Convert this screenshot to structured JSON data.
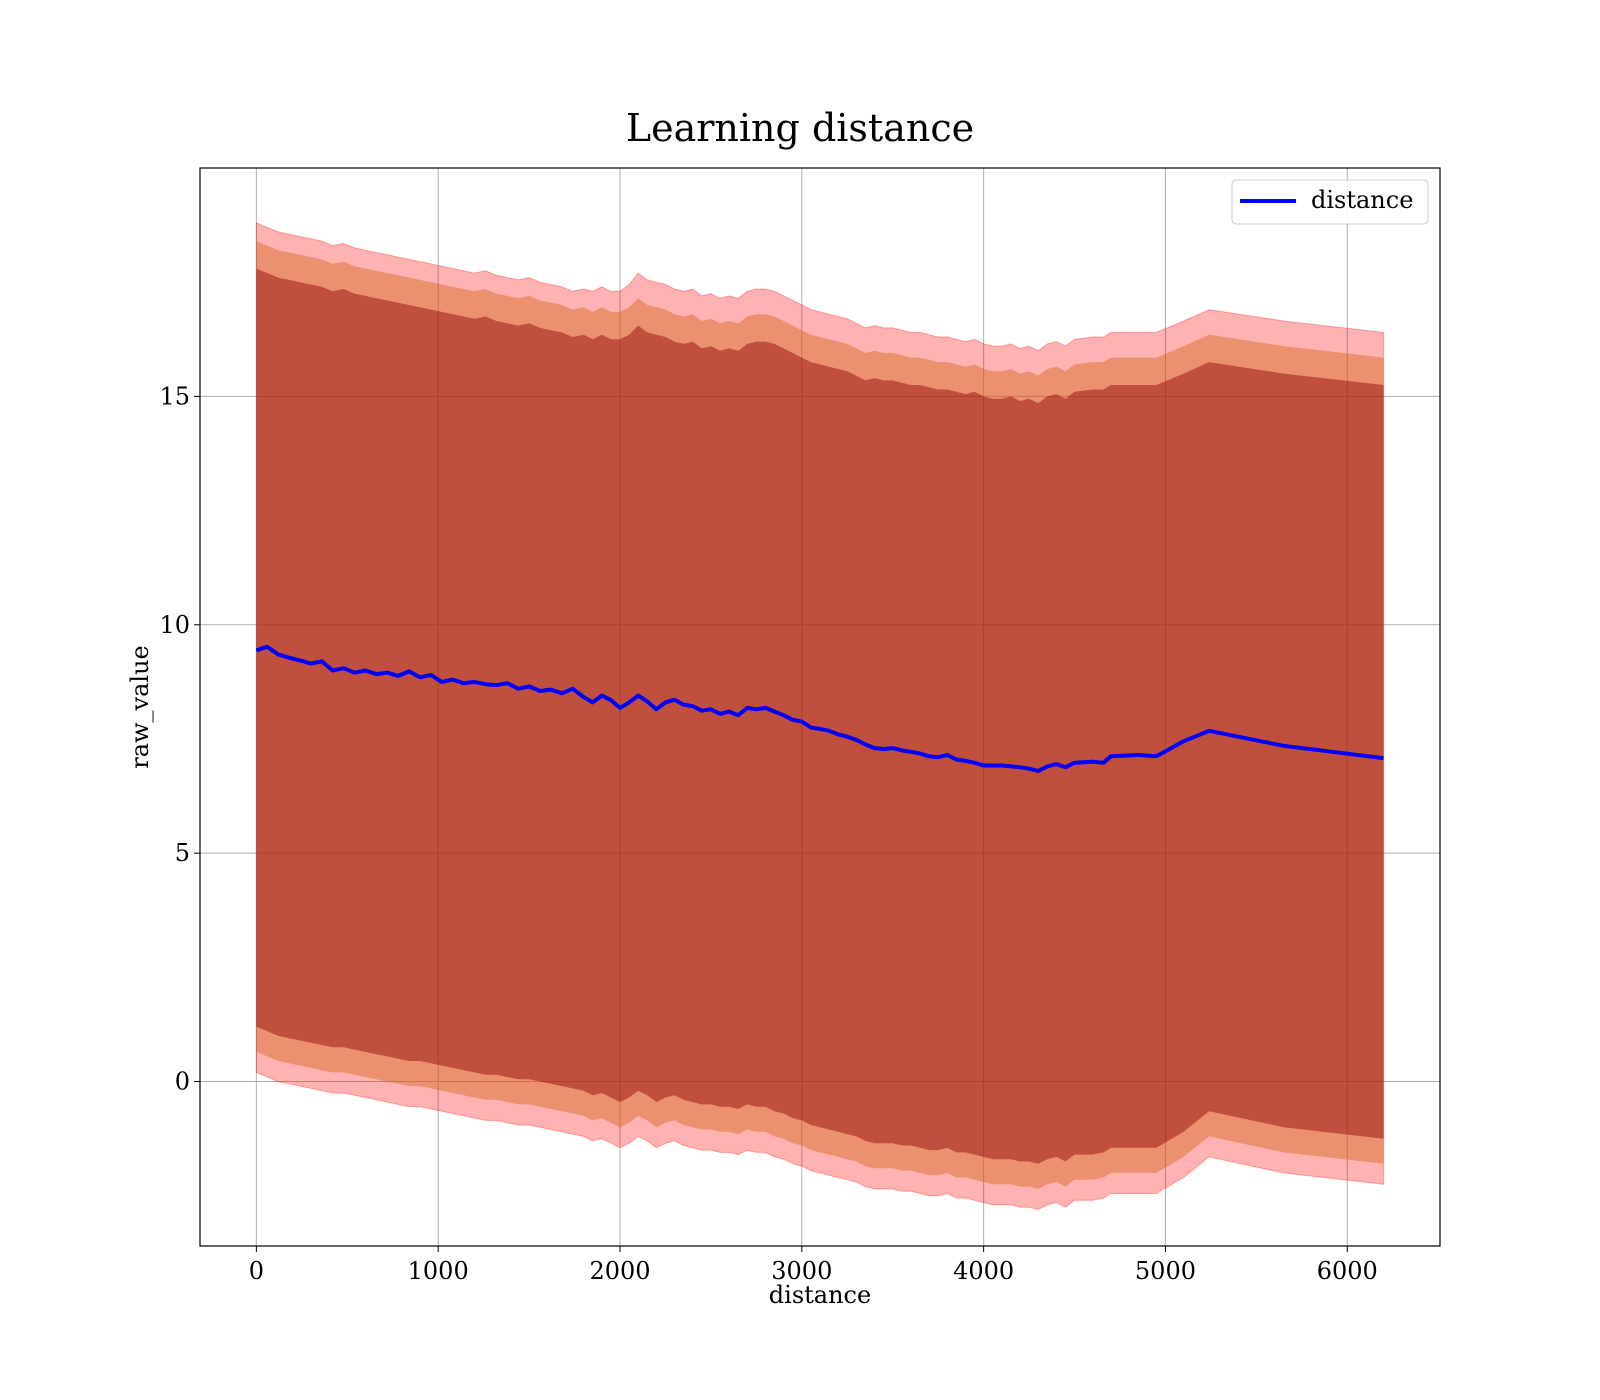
{
  "chart_data": {
    "type": "line",
    "title": "Learning distance",
    "xlabel": "distance",
    "ylabel": "raw_value",
    "xlim": [
      -310,
      6510
    ],
    "ylim": [
      -3.6,
      20.0
    ],
    "xticks": [
      0,
      1000,
      2000,
      3000,
      4000,
      5000,
      6000
    ],
    "yticks": [
      0,
      5,
      10,
      15
    ],
    "grid": true,
    "legend": {
      "placement": "top-right",
      "entries": [
        "distance"
      ]
    },
    "colors": {
      "line": "#0000ff",
      "band_outer": "#ff0000",
      "band_middle": "#d2691e",
      "band_inner": "#8b0000"
    },
    "series": [
      {
        "name": "distance",
        "x": [
          0,
          60,
          120,
          180,
          240,
          300,
          360,
          420,
          480,
          540,
          600,
          660,
          720,
          780,
          840,
          900,
          960,
          1020,
          1080,
          1140,
          1200,
          1260,
          1320,
          1380,
          1440,
          1500,
          1560,
          1620,
          1680,
          1740,
          1800,
          1850,
          1900,
          1950,
          2000,
          2050,
          2100,
          2150,
          2200,
          2250,
          2300,
          2350,
          2400,
          2450,
          2500,
          2550,
          2600,
          2650,
          2700,
          2750,
          2800,
          2850,
          2900,
          2950,
          3000,
          3050,
          3100,
          3150,
          3200,
          3250,
          3300,
          3350,
          3400,
          3450,
          3500,
          3550,
          3600,
          3650,
          3700,
          3750,
          3800,
          3850,
          3900,
          3950,
          4000,
          4050,
          4100,
          4150,
          4200,
          4250,
          4300,
          4350,
          4400,
          4450,
          4500,
          4600,
          4660,
          4700,
          4850,
          4950,
          5100,
          5240,
          5650,
          6200
        ],
        "values": [
          9.44,
          9.52,
          9.35,
          9.28,
          9.22,
          9.15,
          9.2,
          9.0,
          9.05,
          8.95,
          9.0,
          8.92,
          8.95,
          8.88,
          8.98,
          8.85,
          8.9,
          8.75,
          8.8,
          8.72,
          8.75,
          8.7,
          8.68,
          8.72,
          8.6,
          8.65,
          8.55,
          8.58,
          8.5,
          8.6,
          8.42,
          8.3,
          8.45,
          8.35,
          8.18,
          8.3,
          8.45,
          8.32,
          8.15,
          8.3,
          8.36,
          8.25,
          8.22,
          8.12,
          8.15,
          8.05,
          8.1,
          8.02,
          8.18,
          8.15,
          8.18,
          8.1,
          8.02,
          7.92,
          7.88,
          7.75,
          7.72,
          7.68,
          7.6,
          7.55,
          7.48,
          7.38,
          7.3,
          7.28,
          7.3,
          7.25,
          7.22,
          7.18,
          7.12,
          7.1,
          7.15,
          7.05,
          7.02,
          6.98,
          6.92,
          6.92,
          6.92,
          6.9,
          6.88,
          6.85,
          6.8,
          6.9,
          6.95,
          6.88,
          6.98,
          7.0,
          6.98,
          7.12,
          7.15,
          7.12,
          7.45,
          7.68,
          7.35,
          7.08
        ],
        "outer_band": {
          "upper": [
            18.8,
            18.7,
            18.6,
            18.55,
            18.5,
            18.45,
            18.4,
            18.3,
            18.35,
            18.25,
            18.2,
            18.15,
            18.1,
            18.05,
            18.0,
            17.95,
            17.9,
            17.85,
            17.8,
            17.75,
            17.7,
            17.75,
            17.65,
            17.6,
            17.55,
            17.6,
            17.5,
            17.45,
            17.4,
            17.3,
            17.35,
            17.3,
            17.4,
            17.3,
            17.3,
            17.45,
            17.7,
            17.55,
            17.5,
            17.45,
            17.35,
            17.3,
            17.35,
            17.2,
            17.25,
            17.15,
            17.2,
            17.15,
            17.3,
            17.35,
            17.35,
            17.3,
            17.2,
            17.1,
            17.0,
            16.9,
            16.85,
            16.8,
            16.75,
            16.7,
            16.6,
            16.5,
            16.55,
            16.5,
            16.5,
            16.45,
            16.4,
            16.4,
            16.35,
            16.3,
            16.3,
            16.25,
            16.2,
            16.25,
            16.15,
            16.1,
            16.1,
            16.15,
            16.05,
            16.1,
            16.0,
            16.15,
            16.2,
            16.1,
            16.25,
            16.3,
            16.3,
            16.4,
            16.4,
            16.4,
            16.65,
            16.9,
            16.65,
            16.4
          ],
          "lower": [
            0.2,
            0.1,
            0.0,
            -0.05,
            -0.1,
            -0.15,
            -0.2,
            -0.25,
            -0.25,
            -0.3,
            -0.35,
            -0.4,
            -0.45,
            -0.5,
            -0.55,
            -0.55,
            -0.6,
            -0.65,
            -0.7,
            -0.75,
            -0.8,
            -0.85,
            -0.85,
            -0.9,
            -0.95,
            -0.95,
            -1.0,
            -1.05,
            -1.1,
            -1.15,
            -1.2,
            -1.3,
            -1.25,
            -1.35,
            -1.45,
            -1.35,
            -1.2,
            -1.3,
            -1.45,
            -1.35,
            -1.3,
            -1.4,
            -1.45,
            -1.5,
            -1.5,
            -1.55,
            -1.55,
            -1.6,
            -1.5,
            -1.55,
            -1.55,
            -1.65,
            -1.7,
            -1.8,
            -1.85,
            -1.95,
            -2.0,
            -2.05,
            -2.1,
            -2.15,
            -2.2,
            -2.3,
            -2.35,
            -2.35,
            -2.35,
            -2.4,
            -2.4,
            -2.45,
            -2.5,
            -2.5,
            -2.45,
            -2.55,
            -2.55,
            -2.6,
            -2.65,
            -2.7,
            -2.7,
            -2.7,
            -2.75,
            -2.75,
            -2.8,
            -2.7,
            -2.65,
            -2.75,
            -2.6,
            -2.6,
            -2.55,
            -2.45,
            -2.45,
            -2.45,
            -2.1,
            -1.65,
            -2.0,
            -2.25
          ]
        },
        "middle_band": {
          "upper": [
            18.4,
            18.3,
            18.2,
            18.15,
            18.1,
            18.05,
            18.0,
            17.9,
            17.95,
            17.85,
            17.8,
            17.75,
            17.7,
            17.65,
            17.6,
            17.55,
            17.5,
            17.45,
            17.4,
            17.35,
            17.3,
            17.35,
            17.25,
            17.2,
            17.15,
            17.2,
            17.1,
            17.05,
            17.0,
            16.9,
            16.95,
            16.85,
            16.95,
            16.85,
            16.85,
            16.95,
            17.15,
            17.0,
            16.95,
            16.9,
            16.8,
            16.75,
            16.8,
            16.65,
            16.7,
            16.6,
            16.65,
            16.6,
            16.75,
            16.8,
            16.8,
            16.75,
            16.65,
            16.55,
            16.45,
            16.35,
            16.3,
            16.25,
            16.2,
            16.15,
            16.05,
            15.95,
            16.0,
            15.95,
            15.95,
            15.9,
            15.85,
            15.85,
            15.8,
            15.75,
            15.75,
            15.7,
            15.65,
            15.7,
            15.6,
            15.55,
            15.55,
            15.6,
            15.5,
            15.55,
            15.45,
            15.6,
            15.65,
            15.55,
            15.7,
            15.75,
            15.75,
            15.85,
            15.85,
            15.85,
            16.1,
            16.35,
            16.1,
            15.85
          ],
          "lower": [
            0.65,
            0.55,
            0.45,
            0.4,
            0.35,
            0.3,
            0.25,
            0.2,
            0.2,
            0.15,
            0.1,
            0.05,
            0.0,
            -0.05,
            -0.1,
            -0.1,
            -0.15,
            -0.2,
            -0.25,
            -0.3,
            -0.35,
            -0.4,
            -0.4,
            -0.45,
            -0.5,
            -0.5,
            -0.55,
            -0.6,
            -0.65,
            -0.7,
            -0.75,
            -0.85,
            -0.8,
            -0.9,
            -1.0,
            -0.9,
            -0.75,
            -0.85,
            -1.0,
            -0.9,
            -0.85,
            -0.95,
            -1.0,
            -1.05,
            -1.05,
            -1.1,
            -1.1,
            -1.15,
            -1.05,
            -1.1,
            -1.1,
            -1.2,
            -1.25,
            -1.35,
            -1.4,
            -1.5,
            -1.55,
            -1.6,
            -1.65,
            -1.7,
            -1.75,
            -1.85,
            -1.9,
            -1.9,
            -1.9,
            -1.95,
            -1.95,
            -2.0,
            -2.05,
            -2.05,
            -2.0,
            -2.1,
            -2.1,
            -2.15,
            -2.2,
            -2.25,
            -2.25,
            -2.25,
            -2.3,
            -2.3,
            -2.35,
            -2.25,
            -2.2,
            -2.3,
            -2.15,
            -2.15,
            -2.1,
            -2.0,
            -2.0,
            -2.0,
            -1.65,
            -1.2,
            -1.55,
            -1.8
          ]
        },
        "inner_band": {
          "upper": [
            17.8,
            17.7,
            17.6,
            17.55,
            17.5,
            17.45,
            17.4,
            17.3,
            17.35,
            17.25,
            17.2,
            17.15,
            17.1,
            17.05,
            17.0,
            16.95,
            16.9,
            16.85,
            16.8,
            16.75,
            16.7,
            16.75,
            16.65,
            16.6,
            16.55,
            16.6,
            16.5,
            16.45,
            16.4,
            16.3,
            16.35,
            16.25,
            16.35,
            16.25,
            16.25,
            16.35,
            16.55,
            16.4,
            16.35,
            16.3,
            16.2,
            16.15,
            16.2,
            16.05,
            16.1,
            16.0,
            16.05,
            16.0,
            16.15,
            16.2,
            16.2,
            16.15,
            16.05,
            15.95,
            15.85,
            15.75,
            15.7,
            15.65,
            15.6,
            15.55,
            15.45,
            15.35,
            15.4,
            15.35,
            15.35,
            15.3,
            15.25,
            15.25,
            15.2,
            15.15,
            15.15,
            15.1,
            15.05,
            15.1,
            15.0,
            14.95,
            14.95,
            15.0,
            14.9,
            14.95,
            14.85,
            15.0,
            15.05,
            14.95,
            15.1,
            15.15,
            15.15,
            15.25,
            15.25,
            15.25,
            15.5,
            15.75,
            15.5,
            15.25
          ],
          "lower": [
            1.2,
            1.1,
            1.0,
            0.95,
            0.9,
            0.85,
            0.8,
            0.75,
            0.75,
            0.7,
            0.65,
            0.6,
            0.55,
            0.5,
            0.45,
            0.45,
            0.4,
            0.35,
            0.3,
            0.25,
            0.2,
            0.15,
            0.15,
            0.1,
            0.05,
            0.05,
            0.0,
            -0.05,
            -0.1,
            -0.15,
            -0.2,
            -0.3,
            -0.25,
            -0.35,
            -0.45,
            -0.35,
            -0.2,
            -0.3,
            -0.45,
            -0.35,
            -0.3,
            -0.4,
            -0.45,
            -0.5,
            -0.5,
            -0.55,
            -0.55,
            -0.6,
            -0.5,
            -0.55,
            -0.55,
            -0.65,
            -0.7,
            -0.8,
            -0.85,
            -0.95,
            -1.0,
            -1.05,
            -1.1,
            -1.15,
            -1.2,
            -1.3,
            -1.35,
            -1.35,
            -1.35,
            -1.4,
            -1.4,
            -1.45,
            -1.5,
            -1.5,
            -1.45,
            -1.55,
            -1.55,
            -1.6,
            -1.65,
            -1.7,
            -1.7,
            -1.7,
            -1.75,
            -1.75,
            -1.8,
            -1.7,
            -1.65,
            -1.75,
            -1.6,
            -1.6,
            -1.55,
            -1.45,
            -1.45,
            -1.45,
            -1.1,
            -0.65,
            -1.0,
            -1.25
          ]
        }
      }
    ]
  }
}
